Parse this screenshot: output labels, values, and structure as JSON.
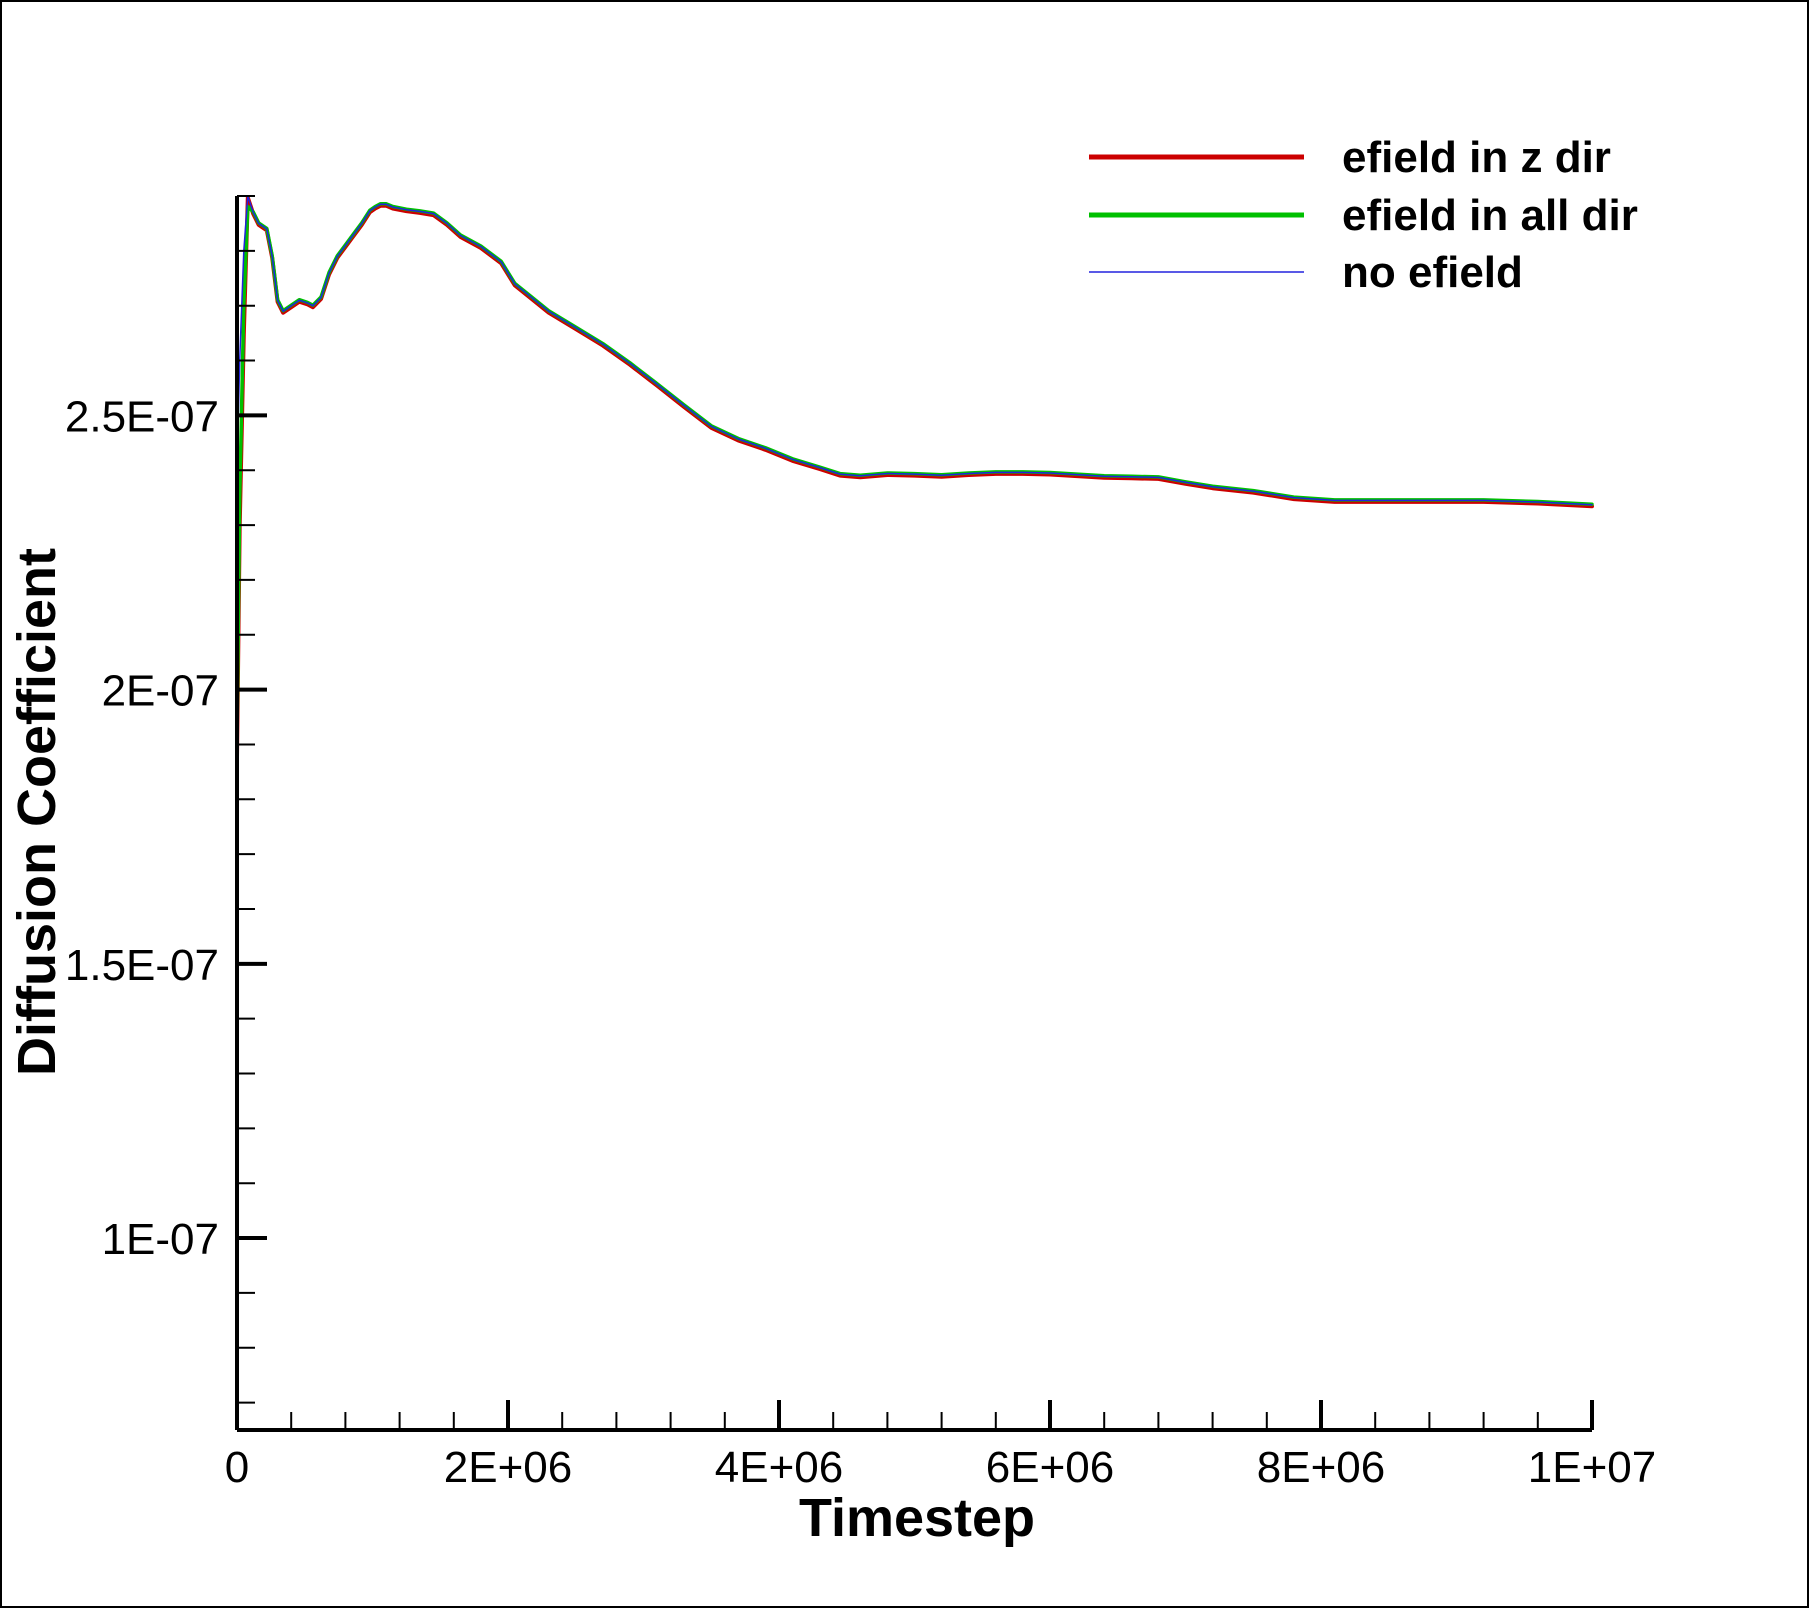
{
  "chart_data": {
    "type": "line",
    "title": "",
    "xlabel": "Timestep",
    "ylabel": "Diffusion Coefficient",
    "xlim": [
      0,
      10000000
    ],
    "ylim": [
      6.5e-08,
      2.9e-07
    ],
    "xticks": [
      {
        "value": 0,
        "label": "0"
      },
      {
        "value": 2000000,
        "label": "2E+06"
      },
      {
        "value": 4000000,
        "label": "4E+06"
      },
      {
        "value": 6000000,
        "label": "6E+06"
      },
      {
        "value": 8000000,
        "label": "8E+06"
      },
      {
        "value": 10000000,
        "label": "1E+07"
      }
    ],
    "yticks": [
      {
        "value": 1e-07,
        "label": "1E-07"
      },
      {
        "value": 1.5e-07,
        "label": "1.5E-07"
      },
      {
        "value": 2e-07,
        "label": "2E-07"
      },
      {
        "value": 2.5e-07,
        "label": "2.5E-07"
      }
    ],
    "x_minor_step": 400000,
    "y_minor_step": 1e-08,
    "grid": false,
    "legend": "top-right",
    "series": [
      {
        "name": "efield in z dir",
        "color": "#cc0000",
        "x": [
          0,
          20000,
          50000,
          80000,
          120000,
          160000,
          220000,
          260000,
          300000,
          340000,
          400000,
          460000,
          520000,
          560000,
          620000,
          680000,
          740000,
          800000,
          860000,
          920000,
          980000,
          1020000,
          1060000,
          1100000,
          1150000,
          1250000,
          1350000,
          1450000,
          1550000,
          1650000,
          1800000,
          1950000,
          2050000,
          2150000,
          2300000,
          2500000,
          2700000,
          2900000,
          3100000,
          3300000,
          3500000,
          3700000,
          3900000,
          4100000,
          4300000,
          4450000,
          4600000,
          4800000,
          5000000,
          5200000,
          5400000,
          5600000,
          5800000,
          6000000,
          6200000,
          6400000,
          6600000,
          6800000,
          7000000,
          7200000,
          7500000,
          7800000,
          8100000,
          8400000,
          8800000,
          9200000,
          9600000,
          10000000
        ],
        "y": [
          1.88e-07,
          2.3e-07,
          2.65e-07,
          2.9e-07,
          2.87e-07,
          2.85e-07,
          2.84e-07,
          2.79e-07,
          2.71e-07,
          2.69e-07,
          2.7e-07,
          2.71e-07,
          2.705e-07,
          2.7e-07,
          2.715e-07,
          2.76e-07,
          2.79e-07,
          2.81e-07,
          2.83e-07,
          2.85e-07,
          2.873e-07,
          2.88e-07,
          2.885e-07,
          2.885e-07,
          2.88e-07,
          2.875e-07,
          2.872e-07,
          2.868e-07,
          2.85e-07,
          2.828e-07,
          2.808e-07,
          2.78e-07,
          2.74e-07,
          2.72e-07,
          2.69e-07,
          2.66e-07,
          2.63e-07,
          2.595e-07,
          2.557e-07,
          2.518e-07,
          2.48e-07,
          2.457e-07,
          2.44e-07,
          2.42e-07,
          2.405e-07,
          2.393e-07,
          2.39e-07,
          2.394e-07,
          2.393e-07,
          2.391e-07,
          2.394e-07,
          2.396e-07,
          2.396e-07,
          2.395e-07,
          2.392e-07,
          2.389e-07,
          2.388e-07,
          2.387e-07,
          2.378e-07,
          2.37e-07,
          2.362e-07,
          2.35e-07,
          2.345e-07,
          2.345e-07,
          2.345e-07,
          2.345e-07,
          2.342e-07,
          2.337e-07
        ]
      },
      {
        "name": "efield in all dir",
        "color": "#00c000",
        "x": [
          0,
          20000,
          50000,
          80000,
          120000,
          160000,
          220000,
          260000,
          300000,
          340000,
          400000,
          460000,
          520000,
          560000,
          620000,
          680000,
          740000,
          800000,
          860000,
          920000,
          980000,
          1020000,
          1060000,
          1100000,
          1150000,
          1250000,
          1350000,
          1450000,
          1550000,
          1650000,
          1800000,
          1950000,
          2050000,
          2150000,
          2300000,
          2500000,
          2700000,
          2900000,
          3100000,
          3300000,
          3500000,
          3700000,
          3900000,
          4100000,
          4300000,
          4450000,
          4600000,
          4800000,
          5000000,
          5200000,
          5400000,
          5600000,
          5800000,
          6000000,
          6200000,
          6400000,
          6600000,
          6800000,
          7000000,
          7200000,
          7500000,
          7800000,
          8100000,
          8400000,
          8800000,
          9200000,
          9600000,
          10000000
        ],
        "y": [
          1.9e-07,
          2.35e-07,
          2.7e-07,
          2.88e-07,
          2.87e-07,
          2.85e-07,
          2.84e-07,
          2.79e-07,
          2.71e-07,
          2.69e-07,
          2.7e-07,
          2.71e-07,
          2.705e-07,
          2.7e-07,
          2.715e-07,
          2.76e-07,
          2.79e-07,
          2.81e-07,
          2.83e-07,
          2.85e-07,
          2.873e-07,
          2.88e-07,
          2.885e-07,
          2.885e-07,
          2.88e-07,
          2.875e-07,
          2.872e-07,
          2.868e-07,
          2.85e-07,
          2.828e-07,
          2.808e-07,
          2.78e-07,
          2.74e-07,
          2.72e-07,
          2.69e-07,
          2.66e-07,
          2.63e-07,
          2.595e-07,
          2.557e-07,
          2.518e-07,
          2.48e-07,
          2.457e-07,
          2.44e-07,
          2.42e-07,
          2.405e-07,
          2.393e-07,
          2.39e-07,
          2.394e-07,
          2.393e-07,
          2.391e-07,
          2.394e-07,
          2.396e-07,
          2.396e-07,
          2.395e-07,
          2.392e-07,
          2.389e-07,
          2.388e-07,
          2.387e-07,
          2.378e-07,
          2.37e-07,
          2.362e-07,
          2.35e-07,
          2.345e-07,
          2.345e-07,
          2.345e-07,
          2.345e-07,
          2.342e-07,
          2.337e-07
        ]
      },
      {
        "name": "no efield",
        "color": "#2222dd",
        "x": [
          0,
          20000,
          50000,
          80000,
          120000,
          160000,
          220000,
          260000,
          300000,
          340000,
          400000,
          460000,
          520000,
          560000,
          620000,
          680000,
          740000,
          800000,
          860000,
          920000,
          980000,
          1020000,
          1060000,
          1100000,
          1150000,
          1250000,
          1350000,
          1450000,
          1550000,
          1650000,
          1800000,
          1950000,
          2050000,
          2150000,
          2300000,
          2500000,
          2700000,
          2900000,
          3100000,
          3300000,
          3500000,
          3700000,
          3900000,
          4100000,
          4300000,
          4450000,
          4600000,
          4800000,
          5000000,
          5200000,
          5400000,
          5600000,
          5800000,
          6000000,
          6200000,
          6400000,
          6600000,
          6800000,
          7000000,
          7200000,
          7500000,
          7800000,
          8100000,
          8400000,
          8800000,
          9200000,
          9600000,
          10000000
        ],
        "y": [
          2.4e-07,
          2.6e-07,
          2.8e-07,
          2.9e-07,
          2.87e-07,
          2.85e-07,
          2.84e-07,
          2.79e-07,
          2.71e-07,
          2.69e-07,
          2.7e-07,
          2.71e-07,
          2.705e-07,
          2.7e-07,
          2.715e-07,
          2.76e-07,
          2.79e-07,
          2.81e-07,
          2.83e-07,
          2.85e-07,
          2.873e-07,
          2.88e-07,
          2.885e-07,
          2.885e-07,
          2.88e-07,
          2.875e-07,
          2.872e-07,
          2.868e-07,
          2.85e-07,
          2.828e-07,
          2.808e-07,
          2.78e-07,
          2.74e-07,
          2.72e-07,
          2.69e-07,
          2.66e-07,
          2.63e-07,
          2.595e-07,
          2.557e-07,
          2.518e-07,
          2.48e-07,
          2.457e-07,
          2.44e-07,
          2.42e-07,
          2.405e-07,
          2.393e-07,
          2.39e-07,
          2.394e-07,
          2.393e-07,
          2.391e-07,
          2.394e-07,
          2.396e-07,
          2.396e-07,
          2.395e-07,
          2.392e-07,
          2.389e-07,
          2.388e-07,
          2.387e-07,
          2.378e-07,
          2.37e-07,
          2.362e-07,
          2.35e-07,
          2.345e-07,
          2.345e-07,
          2.345e-07,
          2.345e-07,
          2.342e-07,
          2.337e-07
        ]
      }
    ]
  }
}
